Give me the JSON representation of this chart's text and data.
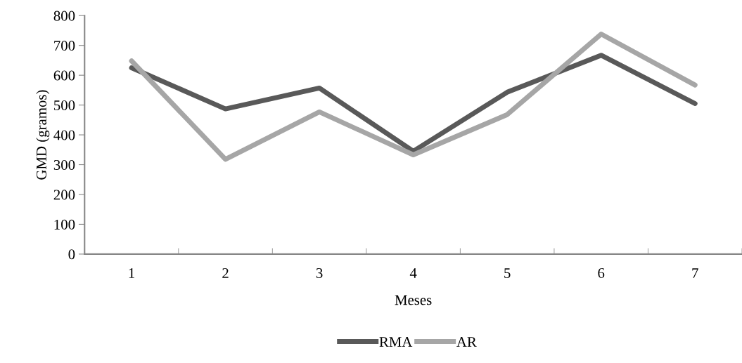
{
  "chart_data": {
    "type": "line",
    "xlabel": "Meses",
    "ylabel": "GMD (gramos)",
    "categories": [
      "1",
      "2",
      "3",
      "4",
      "5",
      "6",
      "7"
    ],
    "series": [
      {
        "name": "RMA",
        "color": "#595959",
        "values": [
          625,
          487,
          557,
          345,
          543,
          667,
          505
        ]
      },
      {
        "name": "AR",
        "color": "#a6a6a6",
        "values": [
          648,
          318,
          477,
          333,
          468,
          738,
          567
        ]
      }
    ],
    "ylim": [
      0,
      800
    ],
    "yticks": [
      0,
      100,
      200,
      300,
      400,
      500,
      600,
      700,
      800
    ],
    "grid": false,
    "legend": "bottom",
    "marker": "none",
    "line_style": "solid"
  }
}
